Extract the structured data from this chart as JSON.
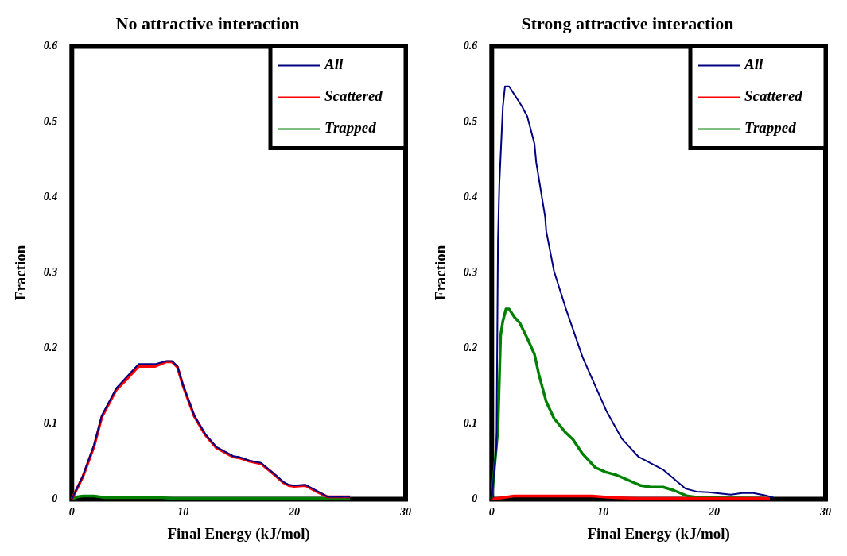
{
  "chart_data": [
    {
      "type": "line",
      "title": "No attractive interaction",
      "xlabel": "Final Energy (kJ/mol)",
      "ylabel": "Fraction",
      "xlim": [
        0,
        30
      ],
      "xticks": [
        0,
        10,
        20,
        30
      ],
      "ylim": [
        0,
        0.6
      ],
      "yticks": [
        0,
        0.1,
        0.2,
        0.3,
        0.4,
        0.5,
        0.6
      ],
      "grid": false,
      "legend": "top right",
      "marker": "none",
      "line_style": "solid",
      "series": [
        {
          "name": "All",
          "color": "#000080",
          "x": [
            0,
            1,
            2,
            2.7,
            4,
            5,
            6,
            7.5,
            8.5,
            9,
            9.5,
            10,
            11,
            12,
            13,
            14,
            14.5,
            15,
            16,
            17,
            18,
            19,
            19.5,
            20,
            21,
            22,
            23,
            25
          ],
          "values": [
            0,
            0.031,
            0.072,
            0.111,
            0.147,
            0.163,
            0.179,
            0.179,
            0.183,
            0.183,
            0.176,
            0.151,
            0.111,
            0.086,
            0.069,
            0.061,
            0.057,
            0.056,
            0.051,
            0.048,
            0.036,
            0.023,
            0.019,
            0.018,
            0.019,
            0.011,
            0.003,
            0.003
          ]
        },
        {
          "name": "Scattered",
          "color": "#ff0000",
          "x": [
            0,
            1,
            2,
            2.7,
            4,
            5,
            6,
            7.5,
            8.5,
            9,
            9.5,
            10,
            11,
            12,
            13,
            14,
            14.5,
            15,
            16,
            17,
            18,
            19,
            19.5,
            20,
            21,
            22,
            23,
            25
          ],
          "values": [
            0,
            0.03,
            0.07,
            0.109,
            0.145,
            0.16,
            0.176,
            0.176,
            0.182,
            0.182,
            0.175,
            0.15,
            0.11,
            0.085,
            0.068,
            0.06,
            0.056,
            0.055,
            0.05,
            0.047,
            0.035,
            0.022,
            0.018,
            0.017,
            0.018,
            0.01,
            0.003,
            0.003
          ]
        },
        {
          "name": "Trapped",
          "color": "#008000",
          "x": [
            0,
            0.5,
            1,
            2,
            3,
            8,
            9,
            25
          ],
          "values": [
            0,
            0.003,
            0.004,
            0.004,
            0.002,
            0.002,
            0.001,
            0.001
          ]
        }
      ]
    },
    {
      "type": "line",
      "title": "Strong attractive interaction",
      "xlabel": "Final Energy (kJ/mol)",
      "ylabel": "Fraction",
      "xlim": [
        0,
        30
      ],
      "xticks": [
        0,
        10,
        20,
        30
      ],
      "ylim": [
        0,
        0.6
      ],
      "yticks": [
        0,
        0.1,
        0.2,
        0.3,
        0.4,
        0.5,
        0.6
      ],
      "grid": false,
      "legend": "top right",
      "marker": "none",
      "line_style": "solid",
      "series": [
        {
          "name": "All",
          "color": "#000080",
          "x": [
            0,
            0.43,
            0.56,
            0.68,
            1,
            1.19,
            1.56,
            2.7,
            3.2,
            3.84,
            4,
            4.8,
            4.9,
            5.6,
            6.65,
            8.17,
            10.3,
            11.7,
            13.2,
            15.4,
            16.2,
            17.4,
            18.4,
            19.5,
            21.5,
            22.5,
            23.5,
            24.6,
            25.3
          ],
          "values": [
            0,
            0.071,
            0.343,
            0.416,
            0.52,
            0.547,
            0.547,
            0.521,
            0.507,
            0.471,
            0.446,
            0.374,
            0.355,
            0.302,
            0.253,
            0.188,
            0.117,
            0.08,
            0.056,
            0.039,
            0.029,
            0.014,
            0.01,
            0.009,
            0.006,
            0.008,
            0.008,
            0.005,
            0.002
          ]
        },
        {
          "name": "Scattered",
          "color": "#ff0000",
          "x": [
            0,
            1,
            2,
            9,
            11,
            13,
            25
          ],
          "values": [
            0,
            0.002,
            0.004,
            0.004,
            0.002,
            0.001,
            0.001
          ]
        },
        {
          "name": "Trapped",
          "color": "#008000",
          "x": [
            0,
            0.56,
            0.8,
            1,
            1.28,
            1.56,
            2.05,
            2.5,
            3.2,
            3.84,
            4.24,
            4.9,
            5.6,
            6.65,
            7.3,
            8.17,
            9.3,
            10.2,
            11.2,
            13.4,
            14.3,
            15.4,
            16.3,
            17.6,
            18.7,
            25
          ],
          "values": [
            0,
            0.094,
            0.217,
            0.236,
            0.252,
            0.252,
            0.241,
            0.234,
            0.213,
            0.192,
            0.165,
            0.129,
            0.107,
            0.088,
            0.079,
            0.06,
            0.042,
            0.036,
            0.032,
            0.018,
            0.016,
            0.016,
            0.012,
            0.004,
            0.002,
            0.001
          ]
        }
      ]
    }
  ]
}
